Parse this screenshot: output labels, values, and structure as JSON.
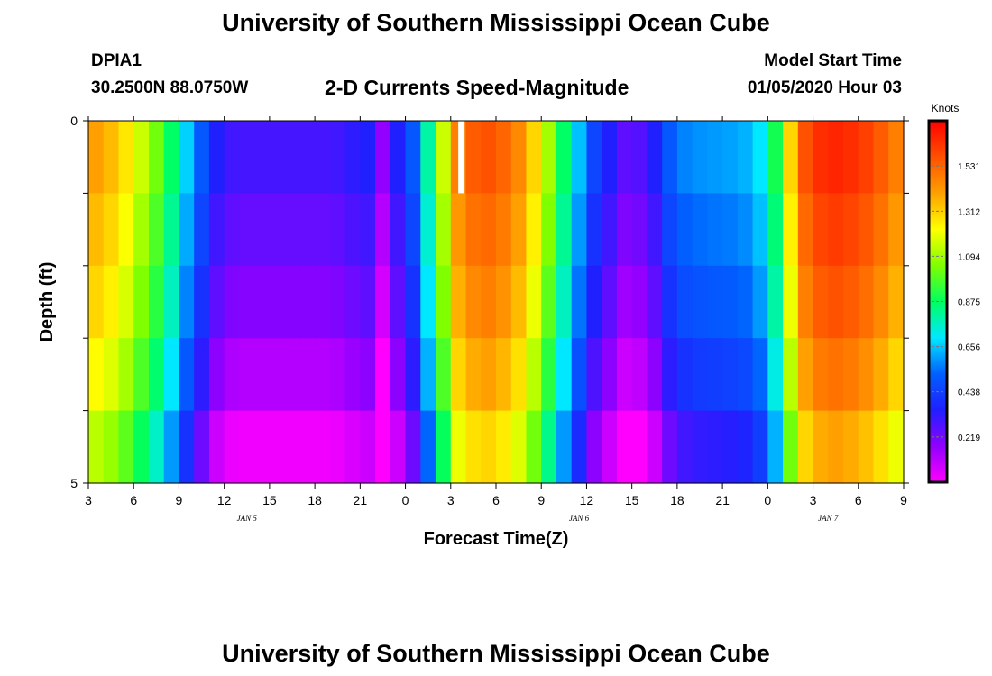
{
  "header": {
    "title": "University of Southern Mississippi Ocean Cube",
    "footer_title": "University of Southern Mississippi Ocean Cube",
    "station": "DPIA1",
    "coords": "30.2500N 88.0750W",
    "subtitle": "2-D Currents Speed-Magnitude",
    "model_label": "Model Start Time",
    "model_time": "01/05/2020 Hour 03"
  },
  "chart_data": {
    "type": "heatmap",
    "title": "2-D Currents Speed-Magnitude",
    "xlabel": "Forecast Time(Z)",
    "ylabel": "Depth (ft)",
    "y_range": [
      0,
      5
    ],
    "y_tick_labels": [
      "0",
      "5"
    ],
    "x_range_hours": [
      0,
      54
    ],
    "x_ticks": [
      "3",
      "6",
      "9",
      "12",
      "15",
      "18",
      "21",
      "0",
      "3",
      "6",
      "9",
      "12",
      "15",
      "18",
      "21",
      "0",
      "3",
      "6",
      "9"
    ],
    "date_labels": [
      {
        "label": "JAN 5",
        "hour": 10.5
      },
      {
        "label": "JAN 6",
        "hour": 32.5
      },
      {
        "label": "JAN 7",
        "hour": 49
      }
    ],
    "colorbar": {
      "label": "Knots",
      "range": [
        0,
        1.75
      ],
      "ticks": [
        "1.531",
        "1.312",
        "1.094",
        "0.875",
        "0.656",
        "0.438",
        "0.219"
      ],
      "tick_values": [
        1.531,
        1.312,
        1.094,
        0.875,
        0.656,
        0.438,
        0.219
      ],
      "colors": [
        "#ff00ff",
        "#9000ff",
        "#2020ff",
        "#0060ff",
        "#00e8ff",
        "#00ff60",
        "#80ff00",
        "#ffff00",
        "#ffa000",
        "#ff5000",
        "#ff0000"
      ]
    },
    "depth_layers": 5,
    "time_step_hours": 1,
    "grid": {
      "base_profile": [
        1.35,
        1.3,
        1.22,
        1.1,
        0.98,
        0.82,
        0.62,
        0.45,
        0.3,
        0.25,
        0.24,
        0.24,
        0.24,
        0.24,
        0.24,
        0.24,
        0.25,
        0.28,
        0.3,
        0.12,
        0.3,
        0.45,
        0.75,
        1.1,
        1.42,
        1.5,
        1.52,
        1.48,
        1.4,
        1.25,
        1.05,
        0.82,
        0.6,
        0.4,
        0.3,
        0.2,
        0.22,
        0.3,
        0.45,
        0.52,
        0.54,
        0.55,
        0.56,
        0.58,
        0.65,
        0.85,
        1.25,
        1.52,
        1.6,
        1.62,
        1.6,
        1.56,
        1.5,
        1.42,
        1.35
      ],
      "layer_offsets": [
        0.05,
        0.0,
        -0.05,
        -0.12,
        -0.22
      ],
      "white_gap": {
        "hour": 24.5,
        "layer": 0
      }
    }
  }
}
